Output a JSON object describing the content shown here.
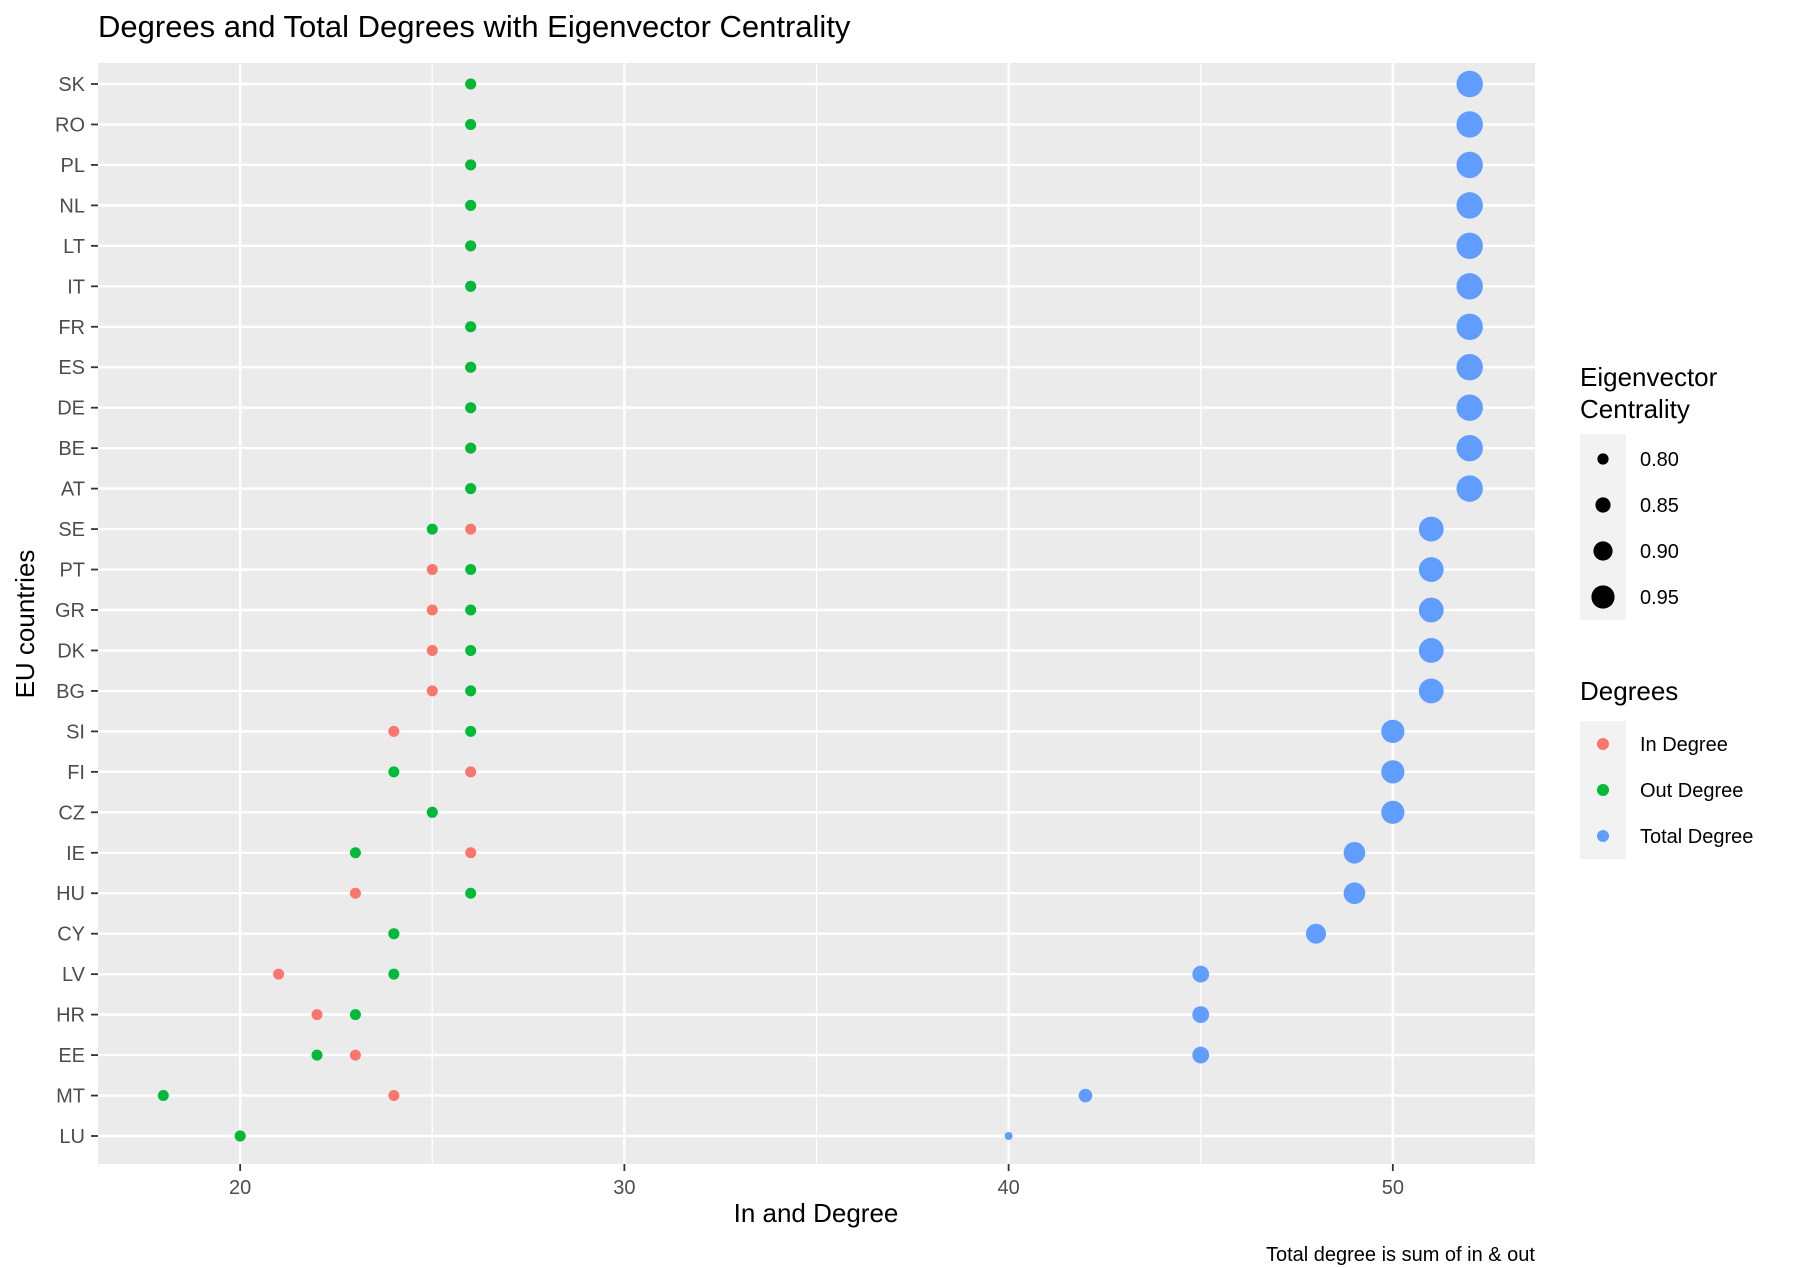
{
  "chart_data": {
    "type": "scatter",
    "title": "Degrees and Total Degrees with Eigenvector Centrality",
    "xlabel": "In and Degree",
    "ylabel": "EU countries",
    "caption": "Total degree is sum of in & out",
    "xlim": [
      16.3,
      53.7
    ],
    "x_ticks": [
      20,
      30,
      40,
      50
    ],
    "grid": true,
    "categories": [
      "LU",
      "MT",
      "EE",
      "HR",
      "LV",
      "CY",
      "HU",
      "IE",
      "CZ",
      "FI",
      "SI",
      "BG",
      "DK",
      "GR",
      "PT",
      "SE",
      "AT",
      "BE",
      "DE",
      "ES",
      "FR",
      "IT",
      "LT",
      "NL",
      "PL",
      "RO",
      "SK"
    ],
    "series": [
      {
        "name": "In Degree",
        "color": "#F8766D",
        "values": [
          20,
          24,
          23,
          22,
          21,
          24,
          23,
          26,
          25,
          26,
          24,
          25,
          25,
          25,
          25,
          26,
          26,
          26,
          26,
          26,
          26,
          26,
          26,
          26,
          26,
          26,
          26
        ]
      },
      {
        "name": "Out Degree",
        "color": "#00BA38",
        "values": [
          20,
          18,
          22,
          23,
          24,
          24,
          26,
          23,
          25,
          24,
          26,
          26,
          26,
          26,
          26,
          25,
          26,
          26,
          26,
          26,
          26,
          26,
          26,
          26,
          26,
          26,
          26
        ]
      },
      {
        "name": "Total Degree",
        "color": "#619CFF",
        "values": [
          40,
          42,
          45,
          45,
          45,
          48,
          49,
          49,
          50,
          50,
          50,
          51,
          51,
          51,
          51,
          51,
          52,
          52,
          52,
          52,
          52,
          52,
          52,
          52,
          52,
          52,
          52
        ]
      }
    ],
    "eigenvector_centrality": [
      0.76,
      0.83,
      0.87,
      0.87,
      0.87,
      0.91,
      0.93,
      0.93,
      0.95,
      0.95,
      0.95,
      0.97,
      0.97,
      0.97,
      0.97,
      0.97,
      0.99,
      0.99,
      0.99,
      0.99,
      0.99,
      0.99,
      0.99,
      0.99,
      0.99,
      0.99,
      0.99
    ],
    "legend_placement": "right",
    "legends": [
      {
        "title_lines": [
          "Eigenvector",
          "Centrality"
        ],
        "kind": "size",
        "items": [
          {
            "label": "0.80",
            "size_value": 0.8
          },
          {
            "label": "0.85",
            "size_value": 0.85
          },
          {
            "label": "0.90",
            "size_value": 0.9
          },
          {
            "label": "0.95",
            "size_value": 0.95
          }
        ]
      },
      {
        "title_lines": [
          "Degrees"
        ],
        "kind": "color",
        "items": [
          {
            "label": "In Degree",
            "color": "#F8766D"
          },
          {
            "label": "Out Degree",
            "color": "#00BA38"
          },
          {
            "label": "Total Degree",
            "color": "#619CFF"
          }
        ]
      }
    ],
    "panel_color": "#EBEBEB",
    "grid_color": "#FFFFFF"
  }
}
